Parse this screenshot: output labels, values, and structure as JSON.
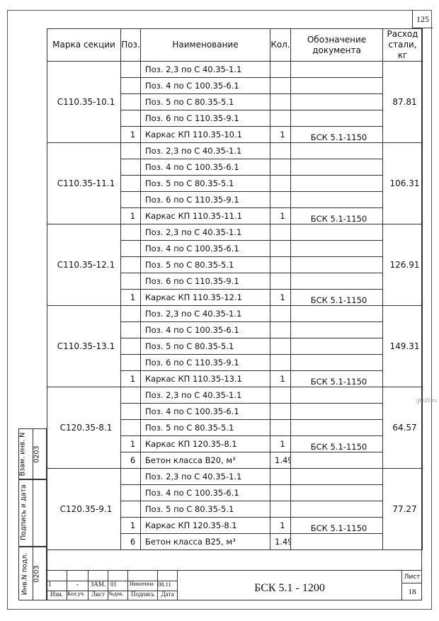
{
  "page_number": "125",
  "headers": [
    "Марка секции",
    "Поз.",
    "Наименование",
    "Кол.",
    "Обозначение документа",
    "Расход стали, кг"
  ],
  "groups": [
    {
      "mark": "С110.35-10.1",
      "steel": "87.81",
      "rows": [
        [
          "",
          "Поз. 2,3 по С 40.35-1.1",
          "",
          ""
        ],
        [
          "",
          "Поз. 4 по С 100.35-6.1",
          "",
          ""
        ],
        [
          "",
          "Поз. 5 по С 80.35-5.1",
          "",
          ""
        ],
        [
          "",
          "Поз. 6 по С 110.35-9.1",
          "",
          ""
        ],
        [
          "1",
          "Каркас КП 110.35-10.1",
          "1",
          "БСК 5.1-1150"
        ]
      ]
    },
    {
      "mark": "С110.35-11.1",
      "steel": "106.31",
      "rows": [
        [
          "",
          "Поз. 2,3 по С 40.35-1.1",
          "",
          ""
        ],
        [
          "",
          "Поз. 4 по С 100.35-6.1",
          "",
          ""
        ],
        [
          "",
          "Поз. 5 по С 80.35-5.1",
          "",
          ""
        ],
        [
          "",
          "Поз. 6 по С 110.35-9.1",
          "",
          ""
        ],
        [
          "1",
          "Каркас КП 110.35-11.1",
          "1",
          "БСК 5.1-1150"
        ]
      ]
    },
    {
      "mark": "С110.35-12.1",
      "steel": "126.91",
      "rows": [
        [
          "",
          "Поз. 2,3 по С 40.35-1.1",
          "",
          ""
        ],
        [
          "",
          "Поз. 4 по С 100.35-6.1",
          "",
          ""
        ],
        [
          "",
          "Поз. 5 по С 80.35-5.1",
          "",
          ""
        ],
        [
          "",
          "Поз. 6 по С 110.35-9.1",
          "",
          ""
        ],
        [
          "1",
          "Каркас КП 110.35-12.1",
          "1",
          "БСК 5.1-1150"
        ]
      ]
    },
    {
      "mark": "С110.35-13.1",
      "steel": "149.31",
      "rows": [
        [
          "",
          "Поз. 2,3 по С 40.35-1.1",
          "",
          ""
        ],
        [
          "",
          "Поз. 4 по С 100.35-6.1",
          "",
          ""
        ],
        [
          "",
          "Поз. 5 по С 80.35-5.1",
          "",
          ""
        ],
        [
          "",
          "Поз. 6 по С 110.35-9.1",
          "",
          ""
        ],
        [
          "1",
          "Каркас КП 110.35-13.1",
          "1",
          "БСК 5.1-1150"
        ]
      ]
    },
    {
      "mark": "С120.35-8.1",
      "steel": "64.57",
      "rows": [
        [
          "",
          "Поз. 2,3 по С 40.35-1.1",
          "",
          ""
        ],
        [
          "",
          "Поз. 4 по С 100.35-6.1",
          "",
          ""
        ],
        [
          "",
          "Поз. 5 по С 80.35-5.1",
          "",
          ""
        ],
        [
          "1",
          "Каркас КП 120.35-8.1",
          "1",
          "БСК 5.1-1150"
        ],
        [
          "6",
          "Бетон класса В20, м³",
          "1.49",
          ""
        ]
      ]
    },
    {
      "mark": "С120.35-9.1",
      "steel": "77.27",
      "rows": [
        [
          "",
          "Поз. 2,3 по С 40.35-1.1",
          "",
          ""
        ],
        [
          "",
          "Поз. 4 по С 100.35-6.1",
          "",
          ""
        ],
        [
          "",
          "Поз. 5 по С 80.35-5.1",
          "",
          ""
        ],
        [
          "1",
          "Каркас КП 120.35-8.1",
          "1",
          "БСК 5.1-1150"
        ],
        [
          "6",
          "Бетон класса В25, м³",
          "1.49",
          ""
        ]
      ]
    }
  ],
  "stamp": {
    "replace_label": "Взам. инв. N",
    "replace_value": "0203",
    "sign_label": "Подпись и дата",
    "orig_label": "Инв.N подл.",
    "orig_value": "0203"
  },
  "title_block": {
    "values": [
      "1",
      "-",
      "ЗАМ.",
      "01",
      "Никитина",
      "08.11"
    ],
    "labels": [
      "Изм.",
      "Кол.уч.",
      "Лист",
      "№док.",
      "Подпись",
      "Дата"
    ],
    "doc_code": "БСК 5.1 - 1200",
    "sheet_label": "Лист",
    "sheet_value": "18"
  },
  "watermark": "gbi22.ru"
}
